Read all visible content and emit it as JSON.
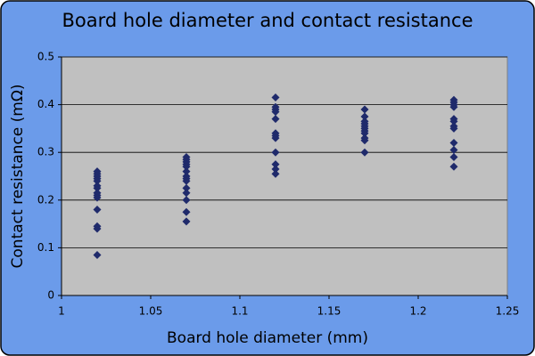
{
  "chart_data": {
    "type": "scatter",
    "title": "Board hole diameter and contact resistance",
    "x_label": "Board hole diameter (mm)",
    "y_label": "Contact resistance (mΩ)",
    "series": [
      {
        "color": "#1f2a6b",
        "x": [
          1.02,
          1.02,
          1.02,
          1.02,
          1.02,
          1.02,
          1.02,
          1.02,
          1.02,
          1.02,
          1.02,
          1.02,
          1.02,
          1.02,
          1.07,
          1.07,
          1.07,
          1.07,
          1.07,
          1.07,
          1.07,
          1.07,
          1.07,
          1.07,
          1.07,
          1.07,
          1.07,
          1.07,
          1.12,
          1.12,
          1.12,
          1.12,
          1.12,
          1.12,
          1.12,
          1.12,
          1.12,
          1.12,
          1.12,
          1.12,
          1.17,
          1.17,
          1.17,
          1.17,
          1.17,
          1.17,
          1.17,
          1.17,
          1.17,
          1.17,
          1.17,
          1.22,
          1.22,
          1.22,
          1.22,
          1.22,
          1.22,
          1.22,
          1.22,
          1.22,
          1.22,
          1.22,
          1.22
        ],
        "values": [
          0.26,
          0.255,
          0.25,
          0.245,
          0.24,
          0.23,
          0.225,
          0.215,
          0.21,
          0.205,
          0.18,
          0.145,
          0.14,
          0.085,
          0.29,
          0.285,
          0.28,
          0.275,
          0.27,
          0.26,
          0.25,
          0.245,
          0.24,
          0.225,
          0.215,
          0.2,
          0.175,
          0.155,
          0.415,
          0.395,
          0.39,
          0.385,
          0.37,
          0.34,
          0.335,
          0.33,
          0.3,
          0.275,
          0.265,
          0.255,
          0.39,
          0.375,
          0.365,
          0.36,
          0.355,
          0.35,
          0.345,
          0.34,
          0.33,
          0.325,
          0.3,
          0.41,
          0.405,
          0.4,
          0.395,
          0.37,
          0.365,
          0.355,
          0.35,
          0.32,
          0.305,
          0.29,
          0.27
        ]
      }
    ],
    "xlim": [
      1,
      1.25
    ],
    "xticks": [
      1,
      1.05,
      1.1,
      1.15,
      1.2,
      1.25
    ],
    "ylim": [
      0,
      0.5
    ],
    "yticks": [
      0,
      0.1,
      0.2,
      0.3,
      0.4,
      0.5
    ],
    "grid": true
  }
}
